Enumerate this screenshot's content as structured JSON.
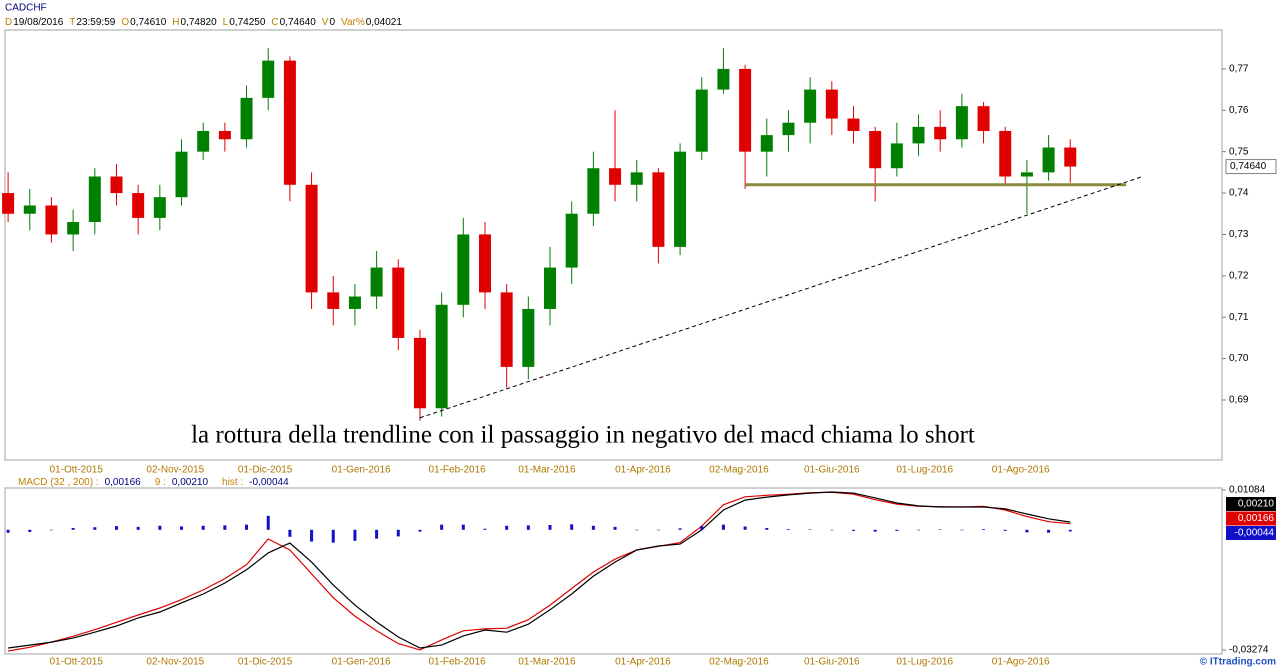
{
  "header": {
    "symbol": "CADCHF",
    "quote": [
      {
        "key": "D",
        "value": "19/08/2016"
      },
      {
        "key": "T",
        "value": "23:59:59"
      },
      {
        "key": "O",
        "value": "0,74610"
      },
      {
        "key": "H",
        "value": "0,74820"
      },
      {
        "key": "L",
        "value": "0,74250"
      },
      {
        "key": "C",
        "value": "0,74640"
      },
      {
        "key": "V",
        "value": "0"
      },
      {
        "key": "Var%",
        "value": "0,04021"
      }
    ]
  },
  "chart_data": [
    {
      "type": "candlestick",
      "x": [
        "2015-09-09",
        "2015-09-16",
        "2015-09-23",
        "2015-09-30",
        "2015-10-07",
        "2015-10-14",
        "2015-10-21",
        "2015-10-28",
        "2015-11-04",
        "2015-11-11",
        "2015-11-18",
        "2015-11-25",
        "2015-12-02",
        "2015-12-09",
        "2015-12-16",
        "2015-12-23",
        "2015-12-30",
        "2016-01-06",
        "2016-01-13",
        "2016-01-20",
        "2016-01-27",
        "2016-02-03",
        "2016-02-10",
        "2016-02-17",
        "2016-02-24",
        "2016-03-02",
        "2016-03-09",
        "2016-03-16",
        "2016-03-23",
        "2016-03-30",
        "2016-04-06",
        "2016-04-13",
        "2016-04-20",
        "2016-04-27",
        "2016-05-04",
        "2016-05-11",
        "2016-05-18",
        "2016-05-25",
        "2016-06-01",
        "2016-06-08",
        "2016-06-15",
        "2016-06-22",
        "2016-06-29",
        "2016-07-06",
        "2016-07-13",
        "2016-07-20",
        "2016-07-27",
        "2016-08-03",
        "2016-08-10",
        "2016-08-17"
      ],
      "open": [
        0.74,
        0.735,
        0.737,
        0.73,
        0.733,
        0.744,
        0.74,
        0.734,
        0.739,
        0.75,
        0.755,
        0.753,
        0.763,
        0.772,
        0.742,
        0.716,
        0.712,
        0.715,
        0.722,
        0.705,
        0.688,
        0.713,
        0.73,
        0.716,
        0.698,
        0.712,
        0.722,
        0.735,
        0.746,
        0.742,
        0.745,
        0.727,
        0.75,
        0.765,
        0.77,
        0.75,
        0.754,
        0.757,
        0.765,
        0.758,
        0.755,
        0.746,
        0.752,
        0.756,
        0.753,
        0.761,
        0.755,
        0.744,
        0.745,
        0.751
      ],
      "high": [
        0.745,
        0.741,
        0.739,
        0.736,
        0.746,
        0.747,
        0.742,
        0.742,
        0.753,
        0.757,
        0.757,
        0.766,
        0.775,
        0.773,
        0.745,
        0.72,
        0.718,
        0.726,
        0.724,
        0.707,
        0.716,
        0.734,
        0.733,
        0.718,
        0.715,
        0.727,
        0.738,
        0.75,
        0.76,
        0.748,
        0.746,
        0.752,
        0.768,
        0.775,
        0.771,
        0.758,
        0.76,
        0.768,
        0.767,
        0.761,
        0.756,
        0.757,
        0.759,
        0.76,
        0.764,
        0.762,
        0.756,
        0.748,
        0.754,
        0.753
      ],
      "low": [
        0.733,
        0.731,
        0.728,
        0.726,
        0.73,
        0.737,
        0.73,
        0.731,
        0.737,
        0.748,
        0.75,
        0.751,
        0.76,
        0.738,
        0.712,
        0.708,
        0.708,
        0.712,
        0.702,
        0.685,
        0.686,
        0.71,
        0.712,
        0.693,
        0.695,
        0.708,
        0.718,
        0.732,
        0.738,
        0.738,
        0.723,
        0.725,
        0.748,
        0.764,
        0.741,
        0.744,
        0.75,
        0.752,
        0.754,
        0.752,
        0.738,
        0.744,
        0.749,
        0.75,
        0.751,
        0.752,
        0.742,
        0.735,
        0.743,
        0.7425
      ],
      "close": [
        0.735,
        0.737,
        0.73,
        0.733,
        0.744,
        0.74,
        0.734,
        0.739,
        0.75,
        0.755,
        0.753,
        0.763,
        0.772,
        0.742,
        0.716,
        0.712,
        0.715,
        0.722,
        0.705,
        0.688,
        0.713,
        0.73,
        0.716,
        0.698,
        0.712,
        0.722,
        0.735,
        0.746,
        0.742,
        0.745,
        0.727,
        0.75,
        0.765,
        0.77,
        0.75,
        0.754,
        0.757,
        0.765,
        0.758,
        0.755,
        0.746,
        0.752,
        0.756,
        0.753,
        0.761,
        0.755,
        0.744,
        0.745,
        0.751,
        0.7464
      ],
      "up_color": "#008000",
      "down_color": "#e00000",
      "xlim": [
        "2015-09-08",
        "2016-10-05"
      ],
      "xticks": [
        {
          "value": "2015-10-01",
          "label": "01-Ott-2015"
        },
        {
          "value": "2015-11-02",
          "label": "02-Nov-2015"
        },
        {
          "value": "2015-12-01",
          "label": "01-Dic-2015"
        },
        {
          "value": "2016-01-01",
          "label": "01-Gen-2016"
        },
        {
          "value": "2016-02-01",
          "label": "01-Feb-2016"
        },
        {
          "value": "2016-03-01",
          "label": "01-Mar-2016"
        },
        {
          "value": "2016-04-01",
          "label": "01-Apr-2016"
        },
        {
          "value": "2016-05-02",
          "label": "02-Mag-2016"
        },
        {
          "value": "2016-06-01",
          "label": "01-Giu-2016"
        },
        {
          "value": "2016-07-01",
          "label": "01-Lug-2016"
        },
        {
          "value": "2016-08-01",
          "label": "01-Ago-2016"
        }
      ],
      "ylim": [
        0.6755,
        0.7794
      ],
      "yticks": [
        {
          "value": 0.69,
          "label": "0,69"
        },
        {
          "value": 0.7,
          "label": "0,70"
        },
        {
          "value": 0.71,
          "label": "0,71"
        },
        {
          "value": 0.72,
          "label": "0,72"
        },
        {
          "value": 0.73,
          "label": "0,73"
        },
        {
          "value": 0.74,
          "label": "0,74"
        },
        {
          "value": 0.75,
          "label": "0,75"
        },
        {
          "value": 0.76,
          "label": "0,76"
        },
        {
          "value": 0.77,
          "label": "0,77"
        }
      ],
      "last_price": {
        "value": 0.7464,
        "label": "0,74640"
      },
      "lines": [
        {
          "style": "solid",
          "color": "#8a8a3a",
          "points": [
            [
              "2016-05-04",
              0.742
            ],
            [
              "2016-09-04",
              0.742
            ]
          ]
        },
        {
          "style": "dashed",
          "color": "#000000",
          "points": [
            [
              "2016-01-20",
              0.6857
            ],
            [
              "2016-09-09",
              0.7439
            ]
          ]
        }
      ],
      "annotation": "la rottura della trendline con il passaggio in negativo del macd chiama lo short"
    },
    {
      "type": "macd",
      "x": [
        "2015-09-09",
        "2015-09-16",
        "2015-09-23",
        "2015-09-30",
        "2015-10-07",
        "2015-10-14",
        "2015-10-21",
        "2015-10-28",
        "2015-11-04",
        "2015-11-11",
        "2015-11-18",
        "2015-11-25",
        "2015-12-02",
        "2015-12-09",
        "2015-12-16",
        "2015-12-23",
        "2015-12-30",
        "2016-01-06",
        "2016-01-13",
        "2016-01-20",
        "2016-01-27",
        "2016-02-03",
        "2016-02-10",
        "2016-02-17",
        "2016-02-24",
        "2016-03-02",
        "2016-03-09",
        "2016-03-16",
        "2016-03-23",
        "2016-03-30",
        "2016-04-06",
        "2016-04-13",
        "2016-04-20",
        "2016-04-27",
        "2016-05-04",
        "2016-05-11",
        "2016-05-18",
        "2016-05-25",
        "2016-06-01",
        "2016-06-08",
        "2016-06-15",
        "2016-06-22",
        "2016-06-29",
        "2016-07-06",
        "2016-07-13",
        "2016-07-20",
        "2016-07-27",
        "2016-08-03",
        "2016-08-10",
        "2016-08-17"
      ],
      "series": [
        {
          "name": "MACD (32 , 200) :",
          "color": "#e00000",
          "style": "line",
          "value_label": "0,00166",
          "values": [
            -0.033,
            -0.032,
            -0.0306,
            -0.029,
            -0.0272,
            -0.0252,
            -0.0232,
            -0.0213,
            -0.019,
            -0.0164,
            -0.0133,
            -0.0095,
            -0.0025,
            -0.0055,
            -0.012,
            -0.0185,
            -0.0235,
            -0.0275,
            -0.031,
            -0.0327,
            -0.03,
            -0.0275,
            -0.027,
            -0.0268,
            -0.0245,
            -0.0205,
            -0.016,
            -0.0115,
            -0.008,
            -0.0055,
            -0.0045,
            -0.0035,
            0.001,
            0.0068,
            0.009,
            0.0094,
            0.0097,
            0.0101,
            0.0102,
            0.0097,
            0.0082,
            0.007,
            0.0064,
            0.0063,
            0.0062,
            0.0064,
            0.0054,
            0.0036,
            0.0022,
            0.00166
          ]
        },
        {
          "name": "9 :",
          "color": "#000000",
          "style": "line",
          "value_label": "0,00210",
          "values": [
            -0.0322,
            -0.0314,
            -0.0306,
            -0.0295,
            -0.0279,
            -0.0262,
            -0.024,
            -0.0224,
            -0.0199,
            -0.0175,
            -0.0145,
            -0.0109,
            -0.0063,
            -0.0036,
            -0.0088,
            -0.015,
            -0.0205,
            -0.0251,
            -0.0292,
            -0.0322,
            -0.0314,
            -0.0289,
            -0.0273,
            -0.0279,
            -0.0257,
            -0.0218,
            -0.0175,
            -0.0126,
            -0.0088,
            -0.0055,
            -0.0044,
            -0.0039,
            0.0,
            0.0054,
            0.0081,
            0.0089,
            0.0095,
            0.01,
            0.0103,
            0.01,
            0.0087,
            0.0073,
            0.0065,
            0.0062,
            0.0062,
            0.0062,
            0.0057,
            0.0043,
            0.003,
            0.0021
          ]
        },
        {
          "name": "hist :",
          "color": "#1010c8",
          "style": "histogram",
          "value_label": "-0,00044",
          "values": [
            -0.0008,
            -0.0006,
            0.0,
            0.0005,
            0.0007,
            0.001,
            0.0008,
            0.0011,
            0.0009,
            0.0011,
            0.0012,
            0.0014,
            0.0038,
            -0.0019,
            -0.0032,
            -0.0035,
            -0.003,
            -0.0024,
            -0.0018,
            -0.0005,
            0.0014,
            0.0014,
            0.0003,
            0.0011,
            0.0012,
            0.0013,
            0.0015,
            0.0011,
            0.0008,
            0.0,
            -0.0001,
            0.0004,
            0.001,
            0.0014,
            0.0009,
            0.0005,
            0.0002,
            0.0001,
            -0.0001,
            -0.0003,
            -0.0005,
            -0.0003,
            -0.0001,
            0.0001,
            0.0,
            0.0002,
            -0.0003,
            -0.0007,
            -0.0008,
            -0.00044
          ]
        }
      ],
      "xlim": [
        "2015-09-08",
        "2016-10-05"
      ],
      "xticks": [
        {
          "value": "2015-10-01",
          "label": "01-Ott-2015"
        },
        {
          "value": "2015-11-02",
          "label": "02-Nov-2015"
        },
        {
          "value": "2015-12-01",
          "label": "01-Dic-2015"
        },
        {
          "value": "2016-01-01",
          "label": "01-Gen-2016"
        },
        {
          "value": "2016-02-01",
          "label": "01-Feb-2016"
        },
        {
          "value": "2016-03-01",
          "label": "01-Mar-2016"
        },
        {
          "value": "2016-04-01",
          "label": "01-Apr-2016"
        },
        {
          "value": "2016-05-02",
          "label": "02-Mag-2016"
        },
        {
          "value": "2016-06-01",
          "label": "01-Giu-2016"
        },
        {
          "value": "2016-07-01",
          "label": "01-Lug-2016"
        },
        {
          "value": "2016-08-01",
          "label": "01-Ago-2016"
        }
      ],
      "ylim": [
        -0.03274,
        0.01084
      ],
      "yticks": [
        {
          "value": -0.03274,
          "label": "-0,03274"
        },
        {
          "value": 0.01084,
          "label": "0,01084"
        }
      ]
    }
  ],
  "watermark": "© ITtrading.com"
}
